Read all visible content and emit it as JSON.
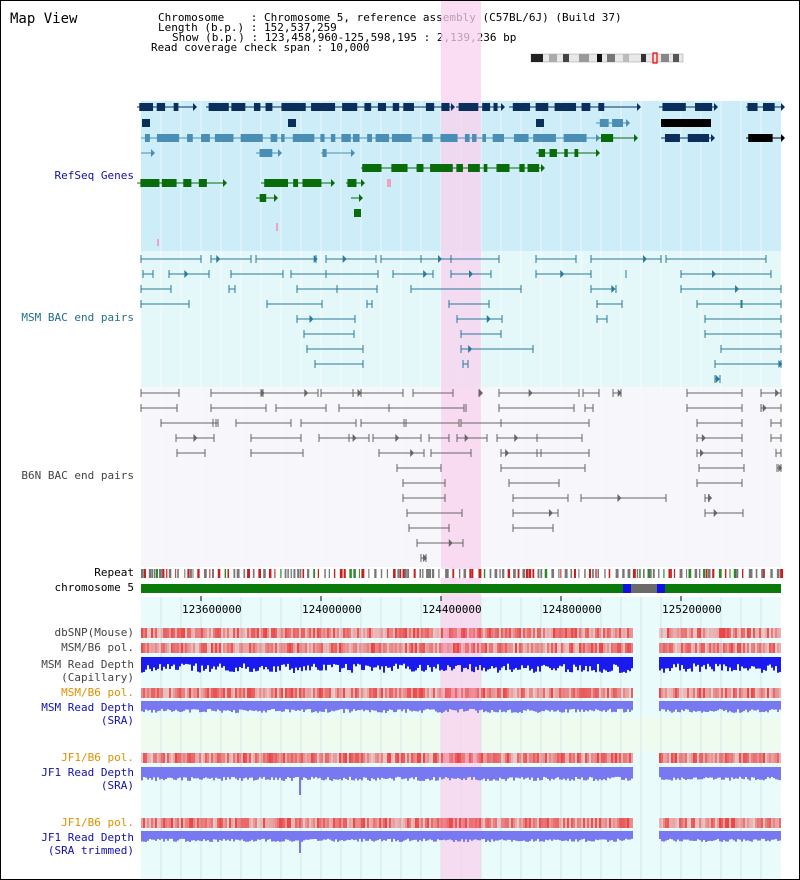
{
  "title": "Map View",
  "info": {
    "chromosome": "Chromosome    : Chromosome 5, reference assembly (C57BL/6J) (Build 37)",
    "length": "Length (b.p.) : 152,537,259",
    "show": "Show (b.p.) : 123,458,960-125,598,195 : 2,139,236 bp",
    "coverage": "Read coverage check span : 10,000"
  },
  "tracks": {
    "refseq": "RefSeq Genes",
    "msm_bac": "MSM BAC end pairs",
    "b6n_bac": "B6N BAC end pairs",
    "repeat": "Repeat",
    "chromosome": "chromosome 5",
    "dbsnp": "dbSNP(Mouse)",
    "msm_pol1": "MSM/B6 pol.",
    "msm_depth_cap_1": "MSM Read Depth",
    "msm_depth_cap_2": "(Capillary)",
    "msm_pol2": "MSM/B6 pol.",
    "msm_depth_sra_1": "MSM Read Depth",
    "msm_depth_sra_2": "(SRA)",
    "jf1_pol1": "JF1/B6 pol.",
    "jf1_depth_sra_1": "JF1 Read Depth",
    "jf1_depth_sra_2": "(SRA)",
    "jf1_pol2": "JF1/B6 pol.",
    "jf1_depth_trim_1": "JF1 Read Depth",
    "jf1_depth_trim_2": "(SRA trimmed)"
  },
  "axis": {
    "ticks": [
      "123600000",
      "124000000",
      "124400000",
      "124800000",
      "125200000"
    ]
  },
  "colors": {
    "refseq_bg": "#cdeef8",
    "msm_bg": "#e4f8fa",
    "b6n_bg": "#f6f6fb",
    "highlight": "#f8d2ee",
    "gene_dark": "#0c2e5c",
    "gene_mid": "#4b8eb5",
    "gene_green": "#0a6b0a",
    "bac_msm": "#2a7a9a",
    "bac_b6n": "#666666",
    "chrom": "#0a7a0a",
    "depth_blue": "#1a1aee",
    "depth_light": "#7878f0",
    "pol_red": "#e83a3a"
  }
}
